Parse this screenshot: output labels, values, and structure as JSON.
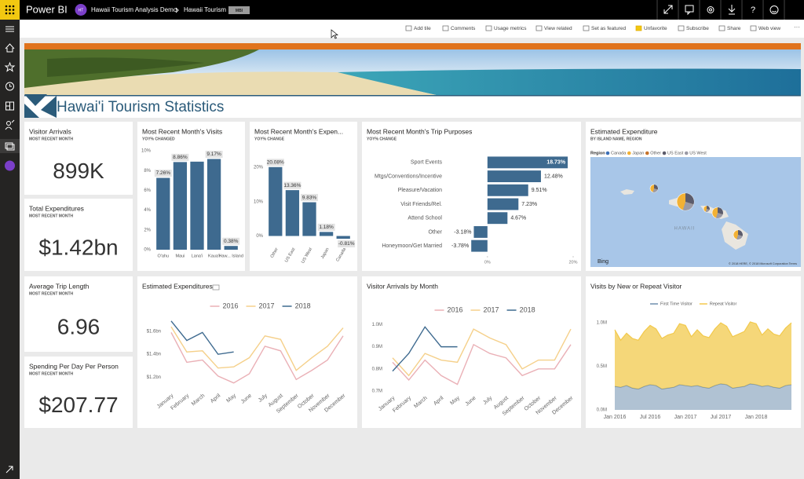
{
  "header": {
    "app": "Power BI",
    "avatar": "HT",
    "workspace": "Hawaii Tourism Analysis Demo",
    "report": "Hawaii Tourism",
    "badge": "MBI"
  },
  "toolbar": [
    "Add tile",
    "Comments",
    "Usage metrics",
    "View related",
    "Set as featured",
    "Unfavorite",
    "Subscribe",
    "Share",
    "Web view"
  ],
  "banner_title": "Hawai'i Tourism Statistics",
  "cards": [
    {
      "title": "Visitor Arrivals",
      "subtitle": "MOST RECENT MONTH",
      "value": "899K"
    },
    {
      "title": "Total Expenditures",
      "subtitle": "MOST RECENT MONTH",
      "value": "$1.42bn"
    },
    {
      "title": "Average Trip Length",
      "subtitle": "MOST RECENT MONTH",
      "value": "6.96"
    },
    {
      "title": "Spending Per Day Per Person",
      "subtitle": "MOST RECENT MONTH",
      "value": "$207.77"
    }
  ],
  "chart_data": [
    {
      "type": "bar",
      "title": "Most Recent Month's Visits",
      "subtitle": "YOY% CHANGED",
      "categories": [
        "O'ahu",
        "Maui",
        "Lana'i",
        "Kaua'i",
        "Haw... Island"
      ],
      "values": [
        7.26,
        8.86,
        8.9,
        9.17,
        0.38
      ],
      "value_labels": [
        "7.26%",
        "8.86%",
        null,
        "9.17%",
        "0.38%"
      ],
      "color": "#3e6a8f",
      "ylim": [
        0,
        10
      ],
      "yticks": [
        {
          "value": 0,
          "label": "0%"
        },
        {
          "value": 2,
          "label": "2%"
        },
        {
          "value": 4,
          "label": "4%"
        },
        {
          "value": 6,
          "label": "6%"
        },
        {
          "value": 8,
          "label": "8%"
        },
        {
          "value": 10,
          "label": "10%"
        }
      ]
    },
    {
      "type": "bar",
      "title": "Most Recent Month's Expen...",
      "subtitle": "YOY% CHANGE",
      "rotate_labels": true,
      "categories": [
        "Other",
        "US East",
        "US West",
        "Japan",
        "Canada"
      ],
      "values": [
        20.08,
        13.36,
        9.83,
        1.18,
        -0.81
      ],
      "value_labels": [
        "20.08%",
        "13.36%",
        "9.83%",
        "1.18%",
        "-0.81%"
      ],
      "color": "#3e6a8f",
      "ylim": [
        -4,
        23
      ],
      "yticks": [
        {
          "value": 0,
          "label": "0%"
        },
        {
          "value": 10,
          "label": "10%"
        },
        {
          "value": 20,
          "label": "20%"
        }
      ]
    },
    {
      "type": "hbar",
      "title": "Most Recent Month's Trip Purposes",
      "subtitle": "YOY% CHANGE",
      "categories": [
        "Sport Events",
        "Mtgs/Conventions/Incentive",
        "Pleasure/Vacation",
        "Visit Friends/Rel.",
        "Attend School",
        "Other",
        "Honeymoon/Get Married"
      ],
      "values": [
        18.73,
        12.48,
        9.51,
        7.23,
        4.67,
        -3.18,
        -3.78
      ],
      "value_labels": [
        "18.73%",
        "12.48%",
        "9.51%",
        "7.23%",
        "4.67%",
        "-3.18%",
        "-3.78%"
      ],
      "color": "#3e6a8f",
      "xlim": [
        -4,
        20
      ],
      "xticks": [
        {
          "value": 0,
          "label": "0%"
        },
        {
          "value": 20,
          "label": "20%"
        }
      ]
    },
    {
      "type": "map",
      "title": "Estimated Expenditure",
      "subtitle": "BY ISLAND NAME, REGION",
      "legend_title": "Region",
      "series": [
        {
          "name": "Canada",
          "color": "#3b6fb6"
        },
        {
          "name": "Japan",
          "color": "#f2b134"
        },
        {
          "name": "Other",
          "color": "#c7742c"
        },
        {
          "name": "US East",
          "color": "#5b5b6b"
        },
        {
          "name": "US West",
          "color": "#9a9aa6"
        }
      ],
      "annotations": [
        "HAWAII",
        "Bing",
        "© 2018 HERE, © 2018 Microsoft Corporation Terms"
      ]
    },
    {
      "type": "line",
      "title": "Estimated Expenditures",
      "categories": [
        "January",
        "February",
        "March",
        "April",
        "May",
        "June",
        "July",
        "August",
        "September",
        "October",
        "November",
        "December"
      ],
      "series": [
        {
          "name": "2016",
          "color": "#eab0b6",
          "values": [
            1.59,
            1.33,
            1.35,
            1.21,
            1.15,
            1.23,
            1.47,
            1.43,
            1.18,
            1.26,
            1.35,
            1.56
          ]
        },
        {
          "name": "2017",
          "color": "#f5d08a",
          "values": [
            1.64,
            1.42,
            1.43,
            1.28,
            1.29,
            1.37,
            1.56,
            1.53,
            1.26,
            1.37,
            1.47,
            1.63
          ]
        },
        {
          "name": "2018",
          "color": "#3e6a8f",
          "values": [
            1.69,
            1.52,
            1.59,
            1.4,
            1.42,
            null,
            null,
            null,
            null,
            null,
            null,
            null
          ]
        }
      ],
      "ylim": [
        1.1,
        1.75
      ],
      "yticks": [
        {
          "value": 1.2,
          "label": "$1.2bn"
        },
        {
          "value": 1.4,
          "label": "$1.4bn"
        },
        {
          "value": 1.6,
          "label": "$1.6bn"
        }
      ]
    },
    {
      "type": "line",
      "title": "Visitor Arrivals by Month",
      "categories": [
        "January",
        "February",
        "March",
        "April",
        "May",
        "June",
        "July",
        "August",
        "September",
        "October",
        "November",
        "December"
      ],
      "series": [
        {
          "name": "2016",
          "color": "#eab0b6",
          "values": [
            0.83,
            0.75,
            0.84,
            0.77,
            0.73,
            0.91,
            0.87,
            0.85,
            0.77,
            0.8,
            0.8,
            0.91
          ]
        },
        {
          "name": "2017",
          "color": "#f5d08a",
          "values": [
            0.85,
            0.77,
            0.87,
            0.84,
            0.83,
            0.98,
            0.94,
            0.91,
            0.8,
            0.84,
            0.84,
            0.98
          ]
        },
        {
          "name": "2018",
          "color": "#3e6a8f",
          "values": [
            0.79,
            0.87,
            0.99,
            0.9,
            0.9,
            null,
            null,
            null,
            null,
            null,
            null,
            null
          ]
        }
      ],
      "ylim": [
        0.7,
        1.03
      ],
      "yticks": [
        {
          "value": 0.7,
          "label": "0.7M"
        },
        {
          "value": 0.8,
          "label": "0.8M"
        },
        {
          "value": 0.9,
          "label": "0.9M"
        },
        {
          "value": 1.0,
          "label": "1.0M"
        }
      ]
    },
    {
      "type": "area",
      "stacked": true,
      "title": "Visits by New or Repeat Visitor",
      "categories": [
        "Jan 2016",
        null,
        null,
        null,
        null,
        null,
        "Jul 2016",
        null,
        null,
        null,
        null,
        null,
        "Jan 2017",
        null,
        null,
        null,
        null,
        null,
        "Jul 2017",
        null,
        null,
        null,
        null,
        null,
        "Jan 2018",
        null,
        null,
        null,
        null,
        null,
        null
      ],
      "series": [
        {
          "name": "First Time Visitor",
          "color": "#6f8fae",
          "values": [
            0.27,
            0.26,
            0.28,
            0.25,
            0.24,
            0.27,
            0.29,
            0.28,
            0.24,
            0.25,
            0.26,
            0.29,
            0.28,
            0.27,
            0.28,
            0.26,
            0.25,
            0.28,
            0.3,
            0.29,
            0.25,
            0.26,
            0.27,
            0.3,
            0.29,
            0.27,
            0.28,
            0.26,
            0.25,
            0.28,
            0.29
          ]
        },
        {
          "name": "Repeat Visitor",
          "color": "#f2c94c",
          "values": [
            0.65,
            0.54,
            0.6,
            0.57,
            0.56,
            0.63,
            0.68,
            0.65,
            0.58,
            0.61,
            0.62,
            0.7,
            0.69,
            0.57,
            0.64,
            0.59,
            0.58,
            0.65,
            0.7,
            0.67,
            0.59,
            0.61,
            0.63,
            0.71,
            0.7,
            0.59,
            0.65,
            0.61,
            0.6,
            0.66,
            0.71
          ]
        }
      ],
      "ylim": [
        0,
        1.1
      ],
      "yticks": [
        {
          "value": 0,
          "label": "0.0M"
        },
        {
          "value": 0.5,
          "label": "0.5M"
        },
        {
          "value": 1.0,
          "label": "1.0M"
        }
      ]
    }
  ]
}
